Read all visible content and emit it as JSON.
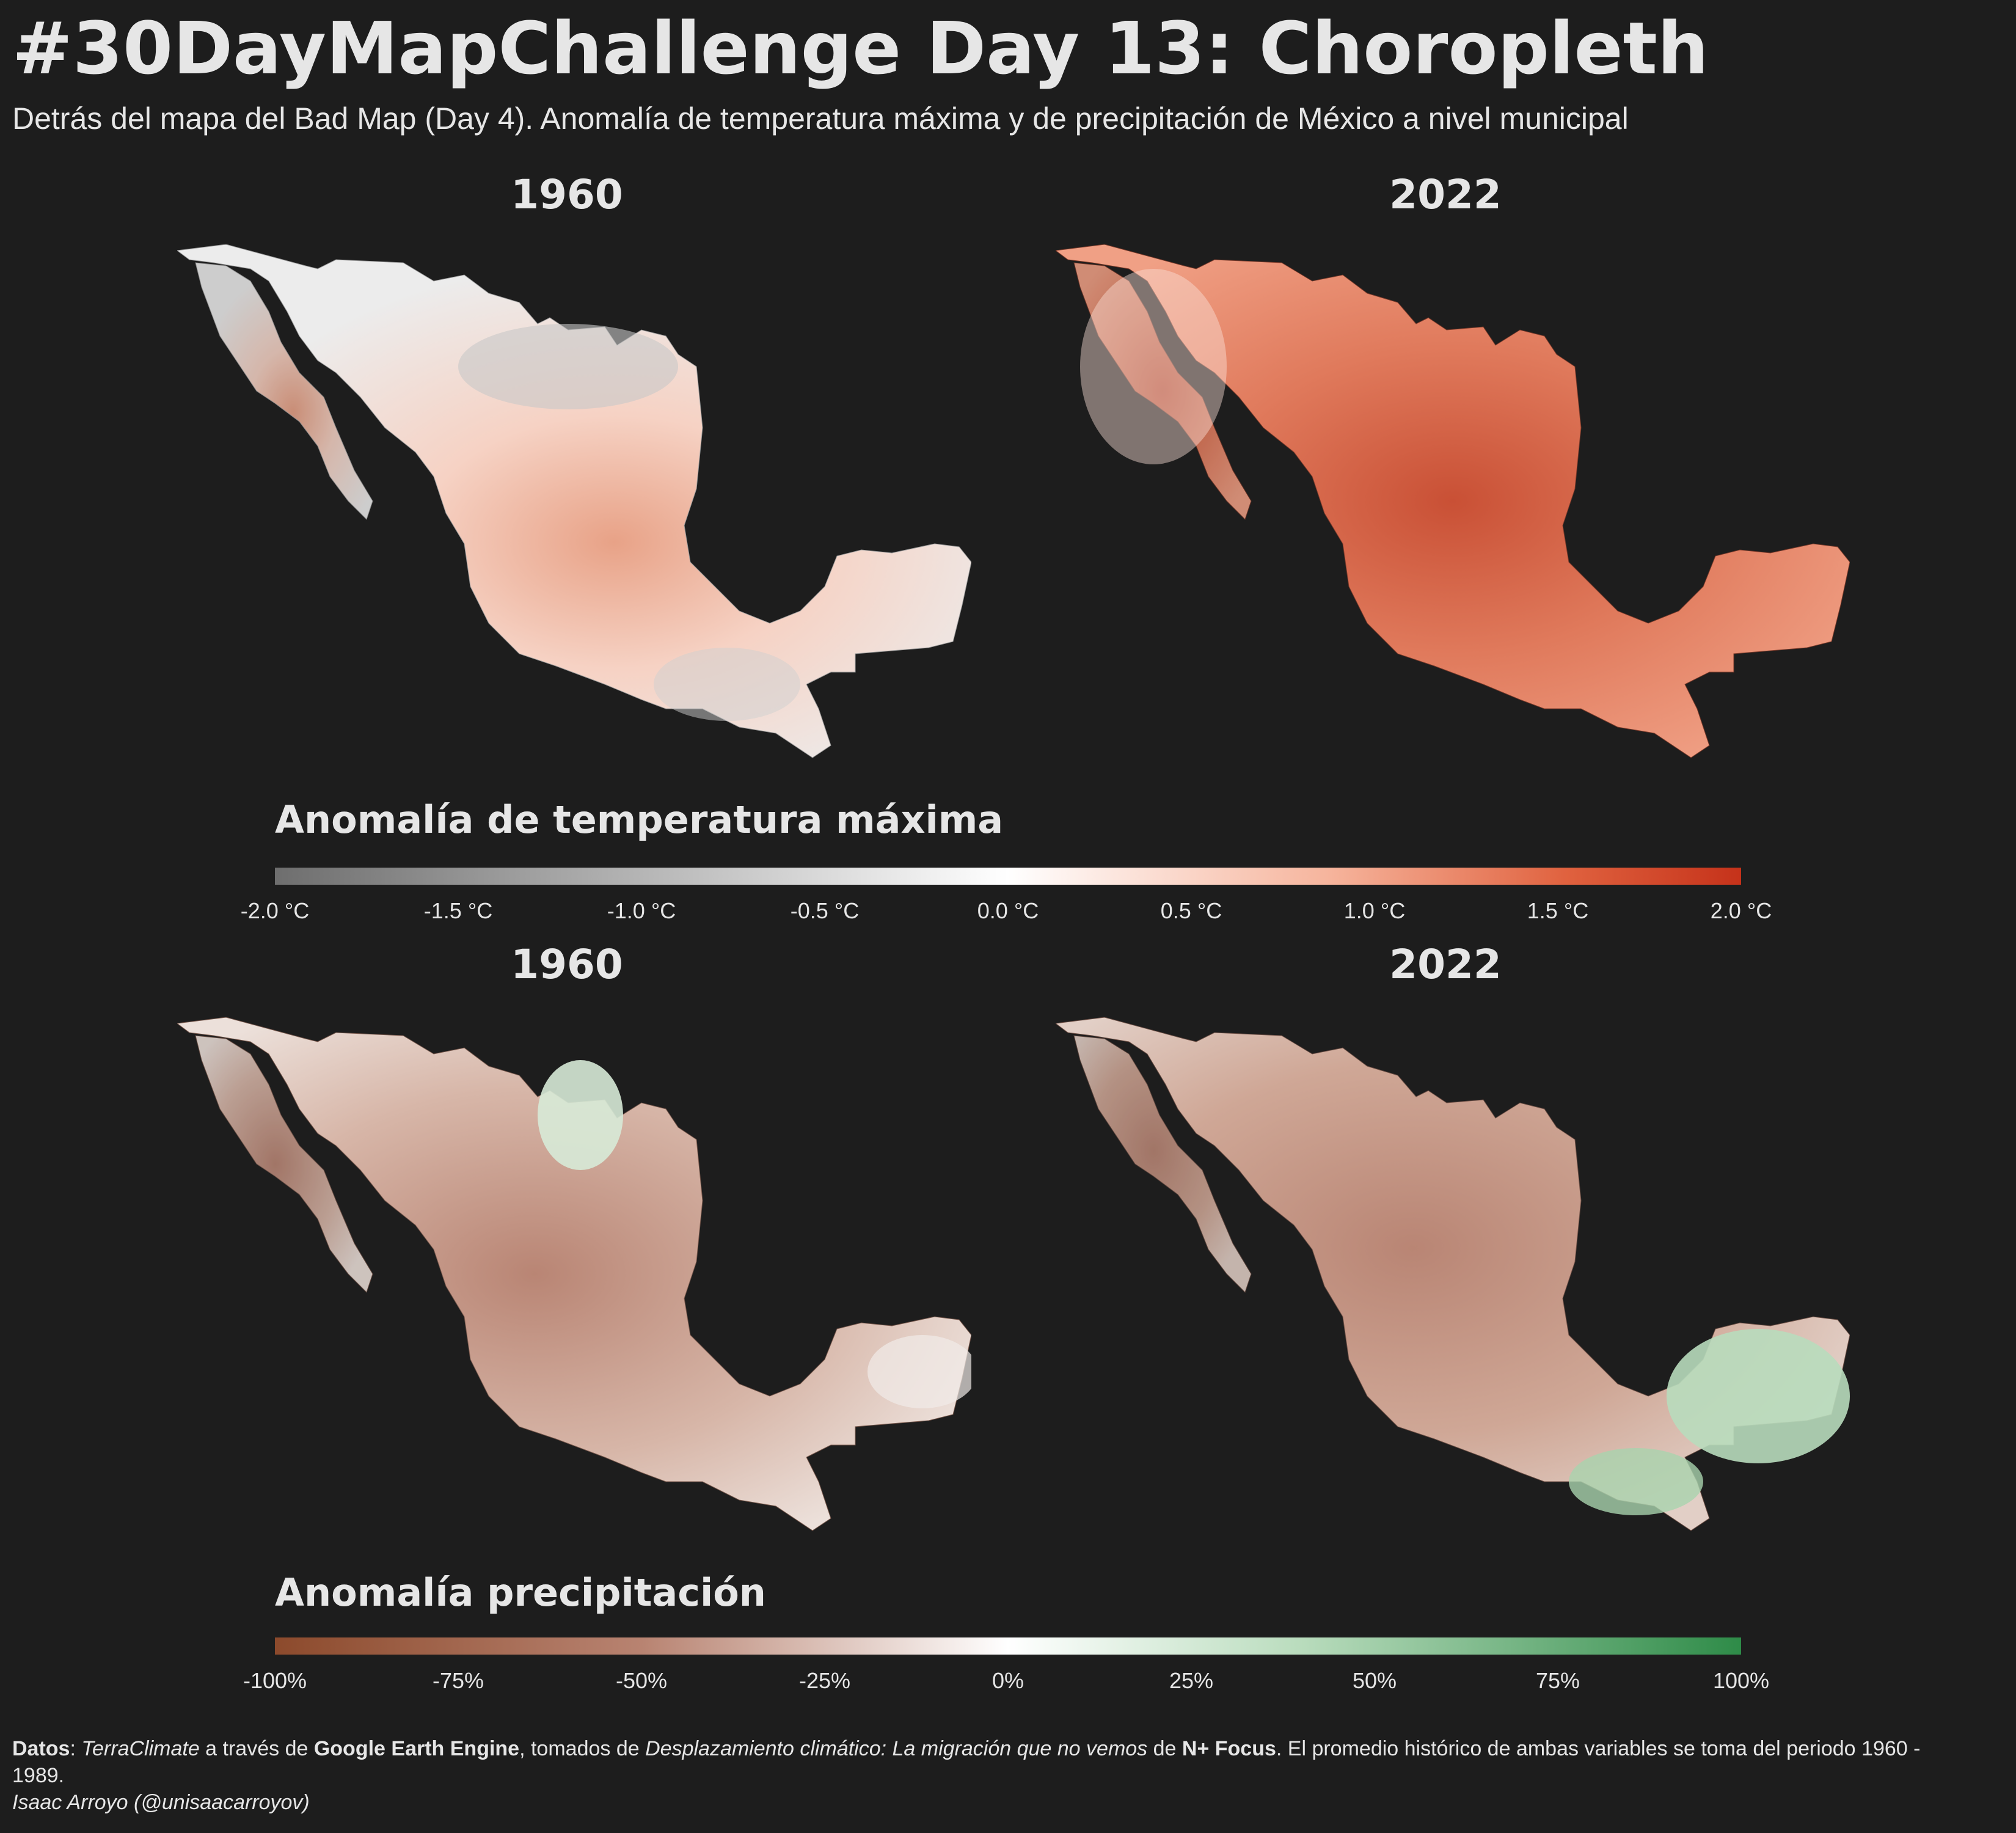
{
  "header": {
    "title": "#30DayMapChallenge Day 13: Choropleth",
    "subtitle": "Detrás del mapa del Bad Map (Day 4). Anomalía de temperatura máxima y de precipitación de México a nivel municipal"
  },
  "temperature": {
    "panels": [
      {
        "year": "1960"
      },
      {
        "year": "2022"
      }
    ],
    "legend": {
      "title": "Anomalía de temperatura máxima",
      "ticks": [
        "-2.0 °C",
        "-1.5 °C",
        "-1.0 °C",
        "-0.5 °C",
        "0.0 °C",
        "0.5 °C",
        "1.0 °C",
        "1.5 °C",
        "2.0 °C"
      ],
      "colors": [
        "#6e6e6e",
        "#b5b5b5",
        "#ffffff",
        "#f6b49c",
        "#e0623f",
        "#c5321a"
      ]
    }
  },
  "precipitation": {
    "panels": [
      {
        "year": "1960"
      },
      {
        "year": "2022"
      }
    ],
    "legend": {
      "title": "Anomalía precipitación",
      "ticks": [
        "-100%",
        "-75%",
        "-50%",
        "-25%",
        "0%",
        "25%",
        "50%",
        "75%",
        "100%"
      ],
      "colors": [
        "#8c4a2c",
        "#b88371",
        "#ffffff",
        "#b9dcbd",
        "#2e8b48"
      ]
    }
  },
  "footer": {
    "datos_label": "Datos",
    "sep1": ": ",
    "source": "TerraClimate",
    "via": " a través de ",
    "platform": "Google Earth Engine",
    "taken": ", tomados de ",
    "article": "Desplazamiento climático: La migración que no vemos",
    "of": " de ",
    "publisher": "N+ Focus",
    "note": ". El promedio histórico de ambas variables se toma del periodo 1960 - 1989.",
    "author": "Isaac Arroyo (@unisaacarroyov)"
  }
}
